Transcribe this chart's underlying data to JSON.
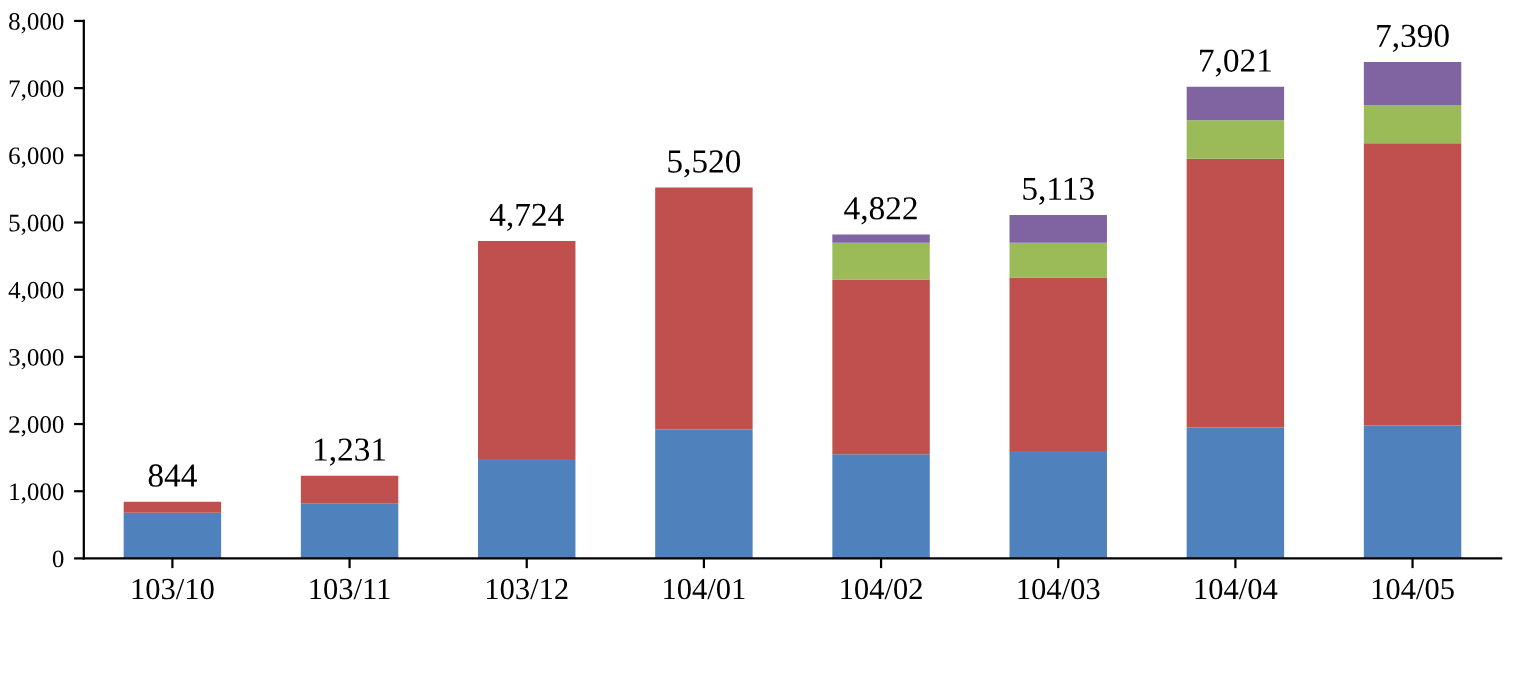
{
  "chart_data": {
    "type": "bar",
    "stacked": true,
    "categories": [
      "103/10",
      "103/11",
      "103/12",
      "104/01",
      "104/02",
      "104/03",
      "104/04",
      "104/05"
    ],
    "series": [
      {
        "color": "#4f81bd",
        "values": [
          680,
          820,
          1480,
          1920,
          1550,
          1600,
          1950,
          1980
        ]
      },
      {
        "color": "#c0504d",
        "values": [
          164,
          411,
          3244,
          3600,
          2600,
          2580,
          4000,
          4200
        ]
      },
      {
        "color": "#9bbb59",
        "values": [
          0,
          0,
          0,
          0,
          550,
          520,
          570,
          570
        ]
      },
      {
        "color": "#8064a2",
        "values": [
          0,
          0,
          0,
          0,
          122,
          413,
          501,
          640
        ]
      }
    ],
    "totals": [
      "844",
      "1,231",
      "4,724",
      "5,520",
      "4,822",
      "5,113",
      "7,021",
      "7,390"
    ],
    "ylim": [
      0,
      8000
    ],
    "yticks": [
      {
        "value": 0,
        "label": "0"
      },
      {
        "value": 1000,
        "label": "1,000"
      },
      {
        "value": 2000,
        "label": "2,000"
      },
      {
        "value": 3000,
        "label": "3,000"
      },
      {
        "value": 4000,
        "label": "4,000"
      },
      {
        "value": 5000,
        "label": "5,000"
      },
      {
        "value": 6000,
        "label": "6,000"
      },
      {
        "value": 7000,
        "label": "7,000"
      },
      {
        "value": 8000,
        "label": "8,000"
      }
    ],
    "grid": false
  }
}
